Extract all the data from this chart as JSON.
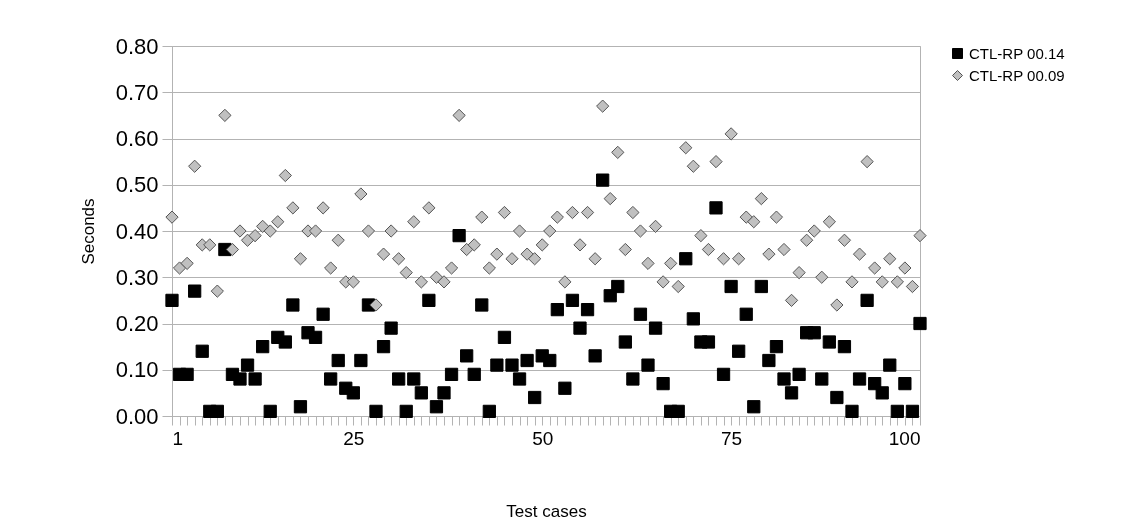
{
  "chart_data": {
    "type": "scatter",
    "xlabel": "Test cases",
    "ylabel": "Seconds",
    "x": [
      1,
      2,
      3,
      4,
      5,
      6,
      7,
      8,
      9,
      10,
      11,
      12,
      13,
      14,
      15,
      16,
      17,
      18,
      19,
      20,
      21,
      22,
      23,
      24,
      25,
      26,
      27,
      28,
      29,
      30,
      31,
      32,
      33,
      34,
      35,
      36,
      37,
      38,
      39,
      40,
      41,
      42,
      43,
      44,
      45,
      46,
      47,
      48,
      49,
      50,
      51,
      52,
      53,
      54,
      55,
      56,
      57,
      58,
      59,
      60,
      61,
      62,
      63,
      64,
      65,
      66,
      67,
      68,
      69,
      70,
      71,
      72,
      73,
      74,
      75,
      76,
      77,
      78,
      79,
      80,
      81,
      82,
      83,
      84,
      85,
      86,
      87,
      88,
      89,
      90,
      91,
      92,
      93,
      94,
      95,
      96,
      97,
      98,
      99,
      100
    ],
    "series": [
      {
        "name": "CTL-RP 00.14",
        "color": "#000000",
        "marker": "square",
        "values": [
          0.25,
          0.09,
          0.09,
          0.27,
          0.14,
          0.01,
          0.01,
          0.36,
          0.09,
          0.08,
          0.11,
          0.08,
          0.15,
          0.01,
          0.17,
          0.16,
          0.24,
          0.02,
          0.18,
          0.17,
          0.22,
          0.08,
          0.12,
          0.06,
          0.05,
          0.12,
          0.24,
          0.01,
          0.15,
          0.19,
          0.08,
          0.01,
          0.08,
          0.05,
          0.25,
          0.02,
          0.05,
          0.09,
          0.39,
          0.13,
          0.09,
          0.24,
          0.01,
          0.11,
          0.17,
          0.11,
          0.08,
          0.12,
          0.04,
          0.13,
          0.12,
          0.23,
          0.06,
          0.25,
          0.19,
          0.23,
          0.13,
          0.51,
          0.26,
          0.28,
          0.16,
          0.08,
          0.22,
          0.11,
          0.19,
          0.07,
          0.01,
          0.01,
          0.34,
          0.21,
          0.16,
          0.16,
          0.45,
          0.09,
          0.28,
          0.14,
          0.22,
          0.02,
          0.28,
          0.12,
          0.15,
          0.08,
          0.05,
          0.09,
          0.18,
          0.18,
          0.08,
          0.16,
          0.04,
          0.15,
          0.01,
          0.08,
          0.25,
          0.07,
          0.05,
          0.11,
          0.01,
          0.07,
          0.01,
          0.2
        ]
      },
      {
        "name": "CTL-RP 00.09",
        "color": "#c0c0c0",
        "marker": "diamond",
        "values": [
          0.43,
          0.32,
          0.33,
          0.54,
          0.37,
          0.37,
          0.27,
          0.65,
          0.36,
          0.4,
          0.38,
          0.39,
          0.41,
          0.4,
          0.42,
          0.52,
          0.45,
          0.34,
          0.4,
          0.4,
          0.45,
          0.32,
          0.38,
          0.29,
          0.29,
          0.48,
          0.4,
          0.24,
          0.35,
          0.4,
          0.34,
          0.31,
          0.42,
          0.29,
          0.45,
          0.3,
          0.29,
          0.32,
          0.65,
          0.36,
          0.37,
          0.43,
          0.32,
          0.35,
          0.44,
          0.34,
          0.4,
          0.35,
          0.34,
          0.37,
          0.4,
          0.43,
          0.29,
          0.44,
          0.37,
          0.44,
          0.34,
          0.67,
          0.47,
          0.57,
          0.36,
          0.44,
          0.4,
          0.33,
          0.41,
          0.29,
          0.33,
          0.28,
          0.58,
          0.54,
          0.39,
          0.36,
          0.55,
          0.34,
          0.61,
          0.34,
          0.43,
          0.42,
          0.47,
          0.35,
          0.43,
          0.36,
          0.25,
          0.31,
          0.38,
          0.4,
          0.3,
          0.42,
          0.24,
          0.38,
          0.29,
          0.35,
          0.55,
          0.32,
          0.29,
          0.34,
          0.29,
          0.32,
          0.28,
          0.39
        ]
      }
    ],
    "xlim": [
      1,
      100
    ],
    "xticks": [
      1,
      {
        "value": 2,
        "label": null
      },
      {
        "value": 3,
        "label": null
      },
      {
        "value": 4,
        "label": null
      },
      {
        "value": 5,
        "label": null
      },
      {
        "value": 6,
        "label": null
      },
      {
        "value": 7,
        "label": null
      },
      {
        "value": 8,
        "label": null
      },
      {
        "value": 9,
        "label": null
      },
      {
        "value": 10,
        "label": null
      },
      {
        "value": 11,
        "label": null
      },
      {
        "value": 12,
        "label": null
      },
      {
        "value": 13,
        "label": null
      },
      {
        "value": 14,
        "label": null
      },
      {
        "value": 15,
        "label": null
      },
      {
        "value": 16,
        "label": null
      },
      {
        "value": 17,
        "label": null
      },
      {
        "value": 18,
        "label": null
      },
      {
        "value": 19,
        "label": null
      },
      {
        "value": 20,
        "label": null
      },
      {
        "value": 21,
        "label": null
      },
      {
        "value": 22,
        "label": null
      },
      {
        "value": 23,
        "label": null
      },
      {
        "value": 24,
        "label": null
      },
      25,
      {
        "value": 26,
        "label": null
      },
      {
        "value": 27,
        "label": null
      },
      {
        "value": 28,
        "label": null
      },
      {
        "value": 29,
        "label": null
      },
      {
        "value": 30,
        "label": null
      },
      {
        "value": 31,
        "label": null
      },
      {
        "value": 32,
        "label": null
      },
      {
        "value": 33,
        "label": null
      },
      {
        "value": 34,
        "label": null
      },
      {
        "value": 35,
        "label": null
      },
      {
        "value": 36,
        "label": null
      },
      {
        "value": 37,
        "label": null
      },
      {
        "value": 38,
        "label": null
      },
      {
        "value": 39,
        "label": null
      },
      {
        "value": 40,
        "label": null
      },
      {
        "value": 41,
        "label": null
      },
      {
        "value": 42,
        "label": null
      },
      {
        "value": 43,
        "label": null
      },
      {
        "value": 44,
        "label": null
      },
      {
        "value": 45,
        "label": null
      },
      {
        "value": 46,
        "label": null
      },
      {
        "value": 47,
        "label": null
      },
      {
        "value": 48,
        "label": null
      },
      {
        "value": 49,
        "label": null
      },
      50,
      {
        "value": 51,
        "label": null
      },
      {
        "value": 52,
        "label": null
      },
      {
        "value": 53,
        "label": null
      },
      {
        "value": 54,
        "label": null
      },
      {
        "value": 55,
        "label": null
      },
      {
        "value": 56,
        "label": null
      },
      {
        "value": 57,
        "label": null
      },
      {
        "value": 58,
        "label": null
      },
      {
        "value": 59,
        "label": null
      },
      {
        "value": 60,
        "label": null
      },
      {
        "value": 61,
        "label": null
      },
      {
        "value": 62,
        "label": null
      },
      {
        "value": 63,
        "label": null
      },
      {
        "value": 64,
        "label": null
      },
      {
        "value": 65,
        "label": null
      },
      {
        "value": 66,
        "label": null
      },
      {
        "value": 67,
        "label": null
      },
      {
        "value": 68,
        "label": null
      },
      {
        "value": 69,
        "label": null
      },
      {
        "value": 70,
        "label": null
      },
      {
        "value": 71,
        "label": null
      },
      {
        "value": 72,
        "label": null
      },
      {
        "value": 73,
        "label": null
      },
      {
        "value": 74,
        "label": null
      },
      75,
      {
        "value": 76,
        "label": null
      },
      {
        "value": 77,
        "label": null
      },
      {
        "value": 78,
        "label": null
      },
      {
        "value": 79,
        "label": null
      },
      {
        "value": 80,
        "label": null
      },
      {
        "value": 81,
        "label": null
      },
      {
        "value": 82,
        "label": null
      },
      {
        "value": 83,
        "label": null
      },
      {
        "value": 84,
        "label": null
      },
      {
        "value": 85,
        "label": null
      },
      {
        "value": 86,
        "label": null
      },
      {
        "value": 87,
        "label": null
      },
      {
        "value": 88,
        "label": null
      },
      {
        "value": 89,
        "label": null
      },
      {
        "value": 90,
        "label": null
      },
      {
        "value": 91,
        "label": null
      },
      {
        "value": 92,
        "label": null
      },
      {
        "value": 93,
        "label": null
      },
      {
        "value": 94,
        "label": null
      },
      {
        "value": 95,
        "label": null
      },
      {
        "value": 96,
        "label": null
      },
      {
        "value": 97,
        "label": null
      },
      {
        "value": 98,
        "label": null
      },
      {
        "value": 99,
        "label": null
      },
      100
    ],
    "ylim": [
      0,
      0.8
    ],
    "yticks": [
      {
        "value": 0,
        "label": "0.00"
      },
      {
        "value": 0.1,
        "label": "0.10"
      },
      {
        "value": 0.2,
        "label": "0.20"
      },
      {
        "value": 0.3,
        "label": "0.30"
      },
      {
        "value": 0.4,
        "label": "0.40"
      },
      {
        "value": 0.5,
        "label": "0.50"
      },
      {
        "value": 0.6,
        "label": "0.60"
      },
      {
        "value": 0.7,
        "label": "0.70"
      },
      {
        "value": 0.8,
        "label": "0.80"
      }
    ],
    "grid": "y",
    "legend": "right"
  }
}
